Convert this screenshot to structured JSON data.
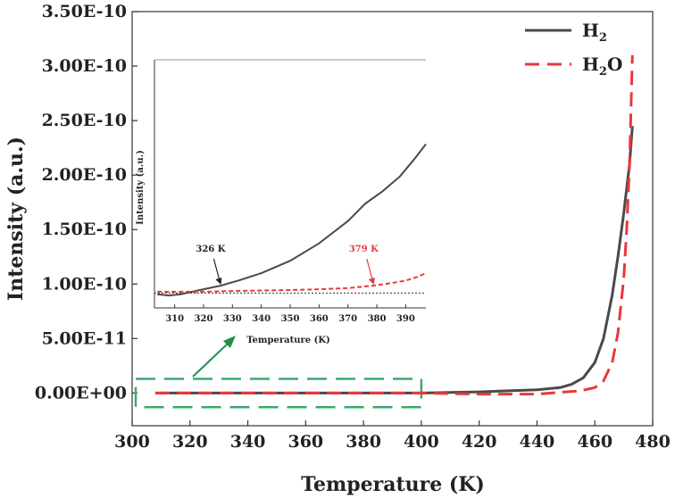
{
  "chart_data": {
    "type": "line",
    "xlabel": "Temperature (K)",
    "ylabel": "Intensity (a.u.)",
    "xlim": [
      300,
      480
    ],
    "ylim": [
      -3e-11,
      3.5e-10
    ],
    "x_ticks": [
      300,
      320,
      340,
      360,
      380,
      400,
      420,
      440,
      460,
      480
    ],
    "x_tick_labels": [
      "300",
      "320",
      "340",
      "360",
      "380",
      "400",
      "420",
      "440",
      "460",
      "480"
    ],
    "y_ticks": [
      0,
      5e-11,
      1e-10,
      1.5e-10,
      2e-10,
      2.5e-10,
      3e-10,
      3.5e-10
    ],
    "y_tick_labels": [
      "0.00E+00",
      "5.00E-11",
      "1.00E-10",
      "1.50E-10",
      "2.00E-10",
      "2.50E-10",
      "3.00E-10",
      "3.50E-10"
    ],
    "legend_position": "top-right",
    "series": [
      {
        "name": "H2",
        "label_main": "H",
        "label_sub": "2",
        "label_tail": "",
        "color": "#4a4a4a",
        "style": "solid",
        "x": [
          308,
          320,
          340,
          360,
          380,
          400,
          420,
          430,
          440,
          448,
          452,
          456,
          460,
          463,
          466,
          468,
          470,
          472,
          473
        ],
        "y": [
          0,
          0,
          0,
          0,
          0,
          0,
          1e-12,
          2e-12,
          3e-12,
          5e-12,
          8e-12,
          1.4e-11,
          2.8e-11,
          5e-11,
          9e-11,
          1.25e-10,
          1.65e-10,
          2.1e-10,
          2.45e-10
        ]
      },
      {
        "name": "H2O",
        "label_main": "H",
        "label_sub": "2",
        "label_tail": "O",
        "color": "#e8383b",
        "style": "dashed",
        "x": [
          308,
          320,
          340,
          360,
          380,
          400,
          420,
          440,
          450,
          455,
          460,
          463,
          466,
          468,
          470,
          471,
          472,
          472.5,
          473
        ],
        "y": [
          0,
          0,
          0,
          0,
          0,
          0,
          -1e-12,
          -1e-12,
          1e-12,
          2e-12,
          5e-12,
          1.1e-11,
          2.8e-11,
          5.5e-11,
          1.05e-10,
          1.5e-10,
          2.1e-10,
          2.6e-10,
          3.1e-10
        ]
      }
    ],
    "highlight_box": {
      "x_range": [
        300,
        400
      ],
      "y_range": [
        -1.3e-11,
        1.3e-11
      ],
      "color": "#3aaa6e"
    },
    "inset": {
      "xlabel": "Temperature (K)",
      "ylabel": "Intensity (a.u.)",
      "xlim": [
        303,
        397
      ],
      "ylim": [
        0,
        1
      ],
      "x_ticks": [
        310,
        320,
        330,
        340,
        350,
        360,
        370,
        380,
        390
      ],
      "x_tick_labels": [
        "310",
        "320",
        "330",
        "340",
        "350",
        "360",
        "370",
        "380",
        "390"
      ],
      "baseline": 0.06,
      "series": [
        {
          "name": "H2",
          "color": "#4a4a4a",
          "style": "solid",
          "x": [
            304,
            308,
            312,
            316,
            320,
            326,
            332,
            340,
            350,
            360,
            370,
            376,
            382,
            388,
            393,
            397
          ],
          "y": [
            0.055,
            0.05,
            0.055,
            0.065,
            0.075,
            0.09,
            0.11,
            0.14,
            0.19,
            0.26,
            0.35,
            0.42,
            0.47,
            0.53,
            0.6,
            0.66
          ]
        },
        {
          "name": "H2O",
          "color": "#e8383b",
          "style": "dashed",
          "x": [
            304,
            310,
            320,
            330,
            340,
            350,
            360,
            370,
            379,
            385,
            390,
            394,
            397
          ],
          "y": [
            0.065,
            0.065,
            0.065,
            0.068,
            0.07,
            0.072,
            0.075,
            0.08,
            0.09,
            0.1,
            0.11,
            0.125,
            0.14
          ]
        }
      ],
      "annotations": [
        {
          "text": "326 K",
          "x": 326,
          "y": 0.09,
          "color": "#222222"
        },
        {
          "text": "379 K",
          "x": 379,
          "y": 0.09,
          "color": "#e8383b"
        }
      ]
    }
  }
}
